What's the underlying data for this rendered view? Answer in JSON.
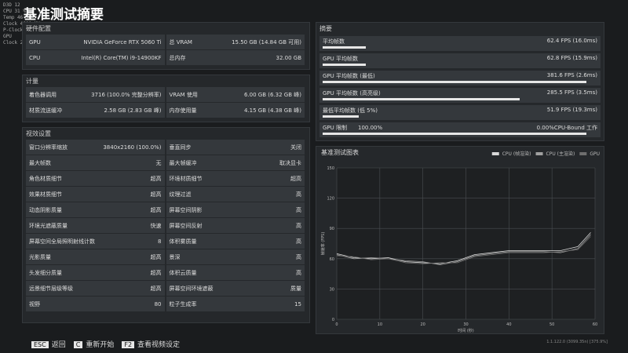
{
  "osd": [
    "D3D 12",
    "CPU 31 %",
    "Temp 46 °C",
    "Clock 4600 MHz",
    "P-Clock 5806 MHz",
    "GPU",
    "Clock 2775 MHz"
  ],
  "title": "基准测试摘要",
  "sections": [
    {
      "title": "硬件配置",
      "rows": [
        [
          "GPU",
          "NVIDIA GeForce RTX 5060 Ti",
          "总 VRAM",
          "15.50 GB (14.84 GB 可用)"
        ],
        [
          "CPU",
          "Intel(R) Core(TM) i9-14900KF",
          "总内存",
          "32.00 GB"
        ]
      ]
    },
    {
      "title": "计量",
      "rows": [
        [
          "着色器调用",
          "3716 (100.0% 完整分辨率)",
          "VRAM 使用",
          "6.00 GB (6.32 GB 峰)"
        ],
        [
          "材质流送缓冲",
          "2.58 GB (2.83 GB 峰)",
          "内存使用量",
          "4.15 GB (4.38 GB 峰)"
        ]
      ]
    },
    {
      "title": "视效设置",
      "rows": [
        [
          "窗口分辨率缩放",
          "3840x2160 (100.0%)",
          "垂直同步",
          "关闭"
        ],
        [
          "最大帧数",
          "无",
          "最大帧缓冲",
          "取决显卡"
        ],
        [
          "角色材质细节",
          "超高",
          "环境材质细节",
          "超高"
        ],
        [
          "效果材质细节",
          "超高",
          "纹理过滤",
          "高"
        ],
        [
          "动态阴影质量",
          "超高",
          "屏幕空间阴影",
          "高"
        ],
        [
          "环境光遮蔽质量",
          "快速",
          "屏幕空间反射",
          "高"
        ],
        [
          "屏幕空间全局照明射线计数",
          "8",
          "体积雾质量",
          "高"
        ],
        [
          "光影质量",
          "超高",
          "景深",
          "高"
        ],
        [
          "头发细分质量",
          "超高",
          "体积云质量",
          "高"
        ],
        [
          "远景细节层级等级",
          "超高",
          "屏幕空间环境遮蔽",
          "质量"
        ],
        [
          "视野",
          "80",
          "粒子生成率",
          "15"
        ]
      ]
    }
  ],
  "summary": {
    "title": "摘要",
    "rows": [
      {
        "label": "平均帧数",
        "fps": 62.4,
        "value_label": "62.4 FPS",
        "detail": "(16.0ms)"
      },
      {
        "label": "GPU 平均帧数",
        "fps": 62.8,
        "value_label": "62.8 FPS",
        "detail": "(15.9ms)"
      },
      {
        "label": "GPU 平均帧数 (最低)",
        "fps": 381.6,
        "value_label": "381.6 FPS",
        "detail": "(2.6ms)"
      },
      {
        "label": "GPU 平均帧数 (高亮级)",
        "fps": 285.5,
        "value_label": "285.5 FPS",
        "detail": "(3.5ms)"
      },
      {
        "label": "最低平均帧数 (低 5%)",
        "fps": 51.9,
        "value_label": "51.9 FPS",
        "detail": "(19.3ms)"
      }
    ],
    "limit": {
      "label": "GPU 限制",
      "gpu": 100,
      "gpu_label": "100.00%",
      "cpu": 0,
      "cpu_label": "0.00%",
      "cpu_text": "CPU-Bound 工作"
    }
  },
  "chart": {
    "type": "line",
    "title": "基准测试图表",
    "x_label": "时间 (秒)",
    "y_label": "帧速率 (FPS)",
    "x": [
      0,
      4,
      8,
      12,
      16,
      20,
      24,
      28,
      32,
      36,
      40,
      44,
      48,
      52,
      56,
      59
    ],
    "series": [
      {
        "name": "CPU (帧渲染)",
        "color": "#d8d8d8",
        "values": [
          65,
          61,
          60,
          61,
          57,
          56,
          55,
          58,
          64,
          66,
          68,
          68,
          68,
          68,
          72,
          86
        ]
      },
      {
        "name": "CPU (主渲染)",
        "color": "#a0a0a0",
        "values": [
          64,
          60,
          61,
          60,
          58,
          57,
          54,
          57,
          63,
          65,
          67,
          67,
          67,
          66,
          70,
          84
        ]
      },
      {
        "name": "GPU",
        "color": "#6e6e6e",
        "values": [
          63,
          62,
          59,
          60,
          56,
          55,
          56,
          56,
          62,
          64,
          66,
          66,
          66,
          67,
          69,
          82
        ]
      }
    ],
    "xlim": [
      0,
      60
    ],
    "xticks": [
      0,
      10,
      20,
      30,
      40,
      50,
      60
    ],
    "ylim": [
      0,
      150
    ],
    "yticks": [
      0,
      30,
      60,
      90,
      120,
      150
    ],
    "grid": true
  },
  "footer": {
    "keys": [
      {
        "key": "ESC",
        "label": "返回"
      },
      {
        "key": "C",
        "label": "重新开始"
      },
      {
        "key": "F2",
        "label": "查看视频设定"
      }
    ],
    "version": "1.1.122.0 (3099.35n) [375.9%]"
  }
}
